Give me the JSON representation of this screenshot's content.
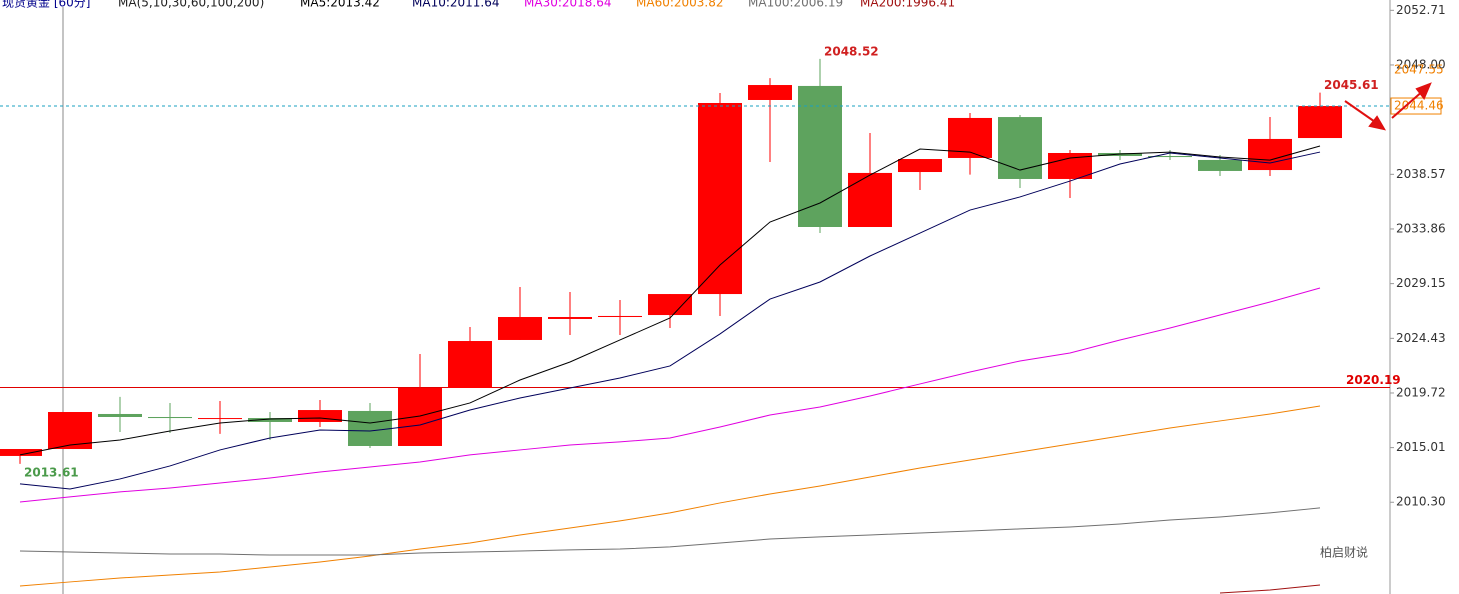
{
  "chart_data": {
    "type": "candlestick",
    "title": "现货黄金 [60分]",
    "subtitle": "MA(5,10,30,60,100,200)",
    "ylim": [
      2002.39,
      2053.6
    ],
    "yticks": [
      2052.71,
      {
        "value": 2048,
        "label": "2048.00"
      },
      2038.57,
      2033.86,
      2029.15,
      2024.43,
      2019.72,
      2015.01,
      {
        "value": 2010.3,
        "label": "2010.30"
      }
    ],
    "up_color": "#ff0000",
    "down_color": "#5ea35e",
    "candles": {
      "open": [
        2014.29,
        2014.89,
        2017.91,
        2017.65,
        2017.56,
        2017.56,
        2017.22,
        2018.17,
        2015.15,
        2020.15,
        2024.29,
        2026.1,
        2026.27,
        2026.44,
        2028.25,
        2044.98,
        2046.19,
        2034.03,
        2038.77,
        2039.98,
        2043.51,
        2038.17,
        2040.41,
        2040.15,
        2039.81,
        2038.94,
        2041.7
      ],
      "high": [
        2014.89,
        2018.08,
        2019.38,
        2018.86,
        2019.03,
        2018.08,
        2019.12,
        2018.86,
        2023.08,
        2025.41,
        2028.86,
        2028.43,
        2027.74,
        2028.25,
        2045.58,
        2046.87,
        2048.52,
        2042.13,
        2039.89,
        2043.86,
        2043.69,
        2040.67,
        2040.67,
        2040.67,
        2040.24,
        2043.51,
        2045.61
      ],
      "low": [
        2013.61,
        2014.89,
        2016.36,
        2016.27,
        2016.19,
        2015.67,
        2016.79,
        2014.98,
        2015.15,
        2020.15,
        2024.29,
        2024.72,
        2024.72,
        2025.32,
        2026.36,
        2039.63,
        2033.51,
        2034.03,
        2037.22,
        2038.54,
        2037.39,
        2036.53,
        2039.81,
        2039.81,
        2038.43,
        2038.43,
        2041.7
      ],
      "close": [
        2014.89,
        2018.08,
        2017.65,
        2017.56,
        2017.56,
        2017.22,
        2018.25,
        2015.15,
        2020.15,
        2024.2,
        2026.27,
        2026.27,
        2026.36,
        2028.25,
        2044.72,
        2046.27,
        2034.03,
        2038.69,
        2039.89,
        2043.43,
        2038.17,
        2040.41,
        2040.15,
        2040.06,
        2038.86,
        2041.62,
        2044.46
      ]
    },
    "series": [
      {
        "name": "MA5:2013.42",
        "color": "#000000",
        "values": [
          2014.38,
          2015.24,
          2015.67,
          2016.44,
          2017.13,
          2017.48,
          2017.56,
          2017.13,
          2017.74,
          2018.86,
          2020.84,
          2022.39,
          2024.29,
          2026.19,
          2030.75,
          2034.46,
          2036.1,
          2038.51,
          2040.75,
          2040.49,
          2038.94,
          2039.98,
          2040.32,
          2040.49,
          2040.06,
          2039.8,
          2041.01
        ]
      },
      {
        "name": "MA10:2011.64",
        "color": "#00005a",
        "values": [
          2011.88,
          2011.44,
          2012.31,
          2013.43,
          2014.81,
          2015.84,
          2016.53,
          2016.44,
          2016.96,
          2018.25,
          2019.29,
          2020.15,
          2021.01,
          2022.05,
          2024.81,
          2027.82,
          2029.29,
          2031.53,
          2033.51,
          2035.49,
          2036.62,
          2037.99,
          2039.46,
          2040.41,
          2039.98,
          2039.55,
          2040.49
        ]
      },
      {
        "name": "MA30:2018.64",
        "color": "#e000e0",
        "values": [
          2010.32,
          2010.76,
          2011.19,
          2011.53,
          2011.96,
          2012.39,
          2012.91,
          2013.34,
          2013.77,
          2014.38,
          2014.81,
          2015.24,
          2015.5,
          2015.84,
          2016.79,
          2017.82,
          2018.51,
          2019.46,
          2020.5,
          2021.53,
          2022.48,
          2023.17,
          2024.29,
          2025.32,
          2026.44,
          2027.56,
          2028.77
        ]
      },
      {
        "name": "MA60:2003.82",
        "color": "#f08000",
        "values": [
          2003.08,
          2003.43,
          2003.77,
          2004.03,
          2004.29,
          2004.72,
          2005.15,
          2005.67,
          2006.27,
          2006.79,
          2007.48,
          2008.08,
          2008.69,
          2009.38,
          2010.24,
          2011.01,
          2011.7,
          2012.48,
          2013.25,
          2013.94,
          2014.63,
          2015.32,
          2016.01,
          2016.7,
          2017.31,
          2017.91,
          2018.6
        ]
      },
      {
        "name": "MA100:2006.19",
        "color": "#707070",
        "values": [
          2006.1,
          2006.01,
          2005.93,
          2005.84,
          2005.84,
          2005.75,
          2005.75,
          2005.75,
          2005.93,
          2006.01,
          2006.1,
          2006.19,
          2006.27,
          2006.45,
          2006.79,
          2007.13,
          2007.31,
          2007.48,
          2007.65,
          2007.82,
          2008.0,
          2008.17,
          2008.43,
          2008.77,
          2009.03,
          2009.38,
          2009.81
        ]
      },
      {
        "name": "MA200:1996.41",
        "color": "#a01010",
        "values": [
          null,
          null,
          null,
          null,
          null,
          null,
          null,
          null,
          null,
          null,
          null,
          null,
          null,
          null,
          null,
          null,
          null,
          null,
          null,
          null,
          null,
          null,
          null,
          null,
          2002.48,
          2002.74,
          2003.17
        ]
      }
    ],
    "hline": {
      "value": 2020.19,
      "color": "#e00000"
    },
    "marker_price": 2047.55,
    "watermark": "柏启财说"
  }
}
